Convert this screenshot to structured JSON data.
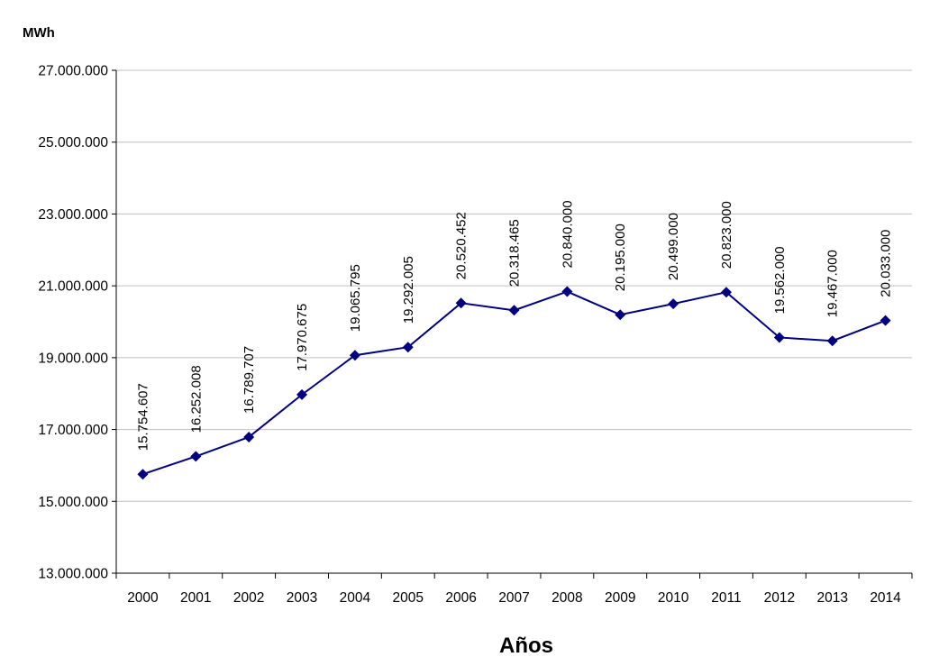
{
  "chart_data": {
    "type": "line",
    "ylabel": "MWh",
    "xlabel": "Años",
    "categories": [
      "2000",
      "2001",
      "2002",
      "2003",
      "2004",
      "2005",
      "2006",
      "2007",
      "2008",
      "2009",
      "2010",
      "2011",
      "2012",
      "2013",
      "2014"
    ],
    "series": [
      {
        "values": [
          15754607,
          16252008,
          16789707,
          17970675,
          19065795,
          19292005,
          20520452,
          20318465,
          20840000,
          20195000,
          20499000,
          20823000,
          19562000,
          19467000,
          20033000
        ],
        "labels": [
          "15.754.607",
          "16.252.008",
          "16.789.707",
          "17.970.675",
          "19.065.795",
          "19.292.005",
          "20.520.452",
          "20.318.465",
          "20.840.000",
          "20.195.000",
          "20.499.000",
          "20.823.000",
          "19.562.000",
          "19.467.000",
          "20.033.000"
        ],
        "color": "#000080"
      }
    ],
    "ylim": [
      13000000,
      27000000
    ],
    "yticks": [
      13000000,
      15000000,
      17000000,
      19000000,
      21000000,
      23000000,
      25000000,
      27000000
    ],
    "ytick_labels": [
      "13.000.000",
      "15.000.000",
      "17.000.000",
      "19.000.000",
      "21.000.000",
      "23.000.000",
      "25.000.000",
      "27.000.000"
    ],
    "grid": true,
    "gridline_color": "#c0c0c0",
    "marker": "diamond"
  }
}
